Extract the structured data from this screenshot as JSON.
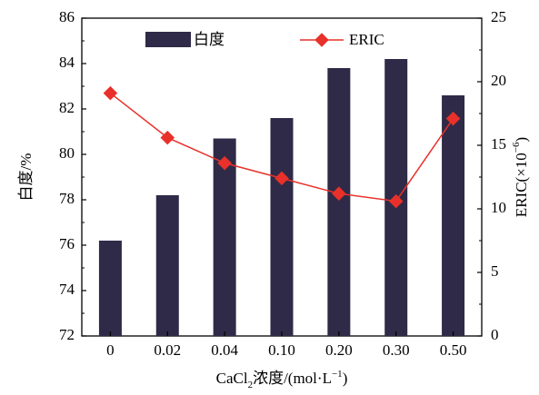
{
  "chart_data": {
    "type": "bar",
    "categories": [
      "0",
      "0.02",
      "0.04",
      "0.10",
      "0.20",
      "0.30",
      "0.50"
    ],
    "xlabel": {
      "prefix": "CaCl",
      "sub": "2",
      "mid": "浓度/(mol·L",
      "sup": "−1",
      "suffix": ")"
    },
    "series": [
      {
        "name": "白度",
        "type": "bar",
        "axis": "left",
        "values": [
          76.2,
          78.2,
          80.7,
          81.6,
          83.8,
          84.2,
          82.6
        ],
        "color": "#2f2a47"
      },
      {
        "name": "ERIC",
        "type": "line",
        "axis": "right",
        "values": [
          19.1,
          15.6,
          13.6,
          12.4,
          11.2,
          10.6,
          17.1
        ],
        "color": "#e8312a"
      }
    ],
    "left_axis": {
      "label": "白度/%",
      "ylim": [
        72,
        86
      ],
      "ticks": [
        "72",
        "74",
        "76",
        "78",
        "80",
        "82",
        "84",
        "86"
      ]
    },
    "right_axis": {
      "label": {
        "main": "ERIC(×10",
        "sup": "−6",
        "close": ")"
      },
      "ylim": [
        0,
        25
      ],
      "ticks": [
        "0",
        "5",
        "10",
        "15",
        "20",
        "25"
      ]
    },
    "legend": {
      "placement": "top",
      "items": [
        "白度",
        "ERIC"
      ]
    }
  }
}
